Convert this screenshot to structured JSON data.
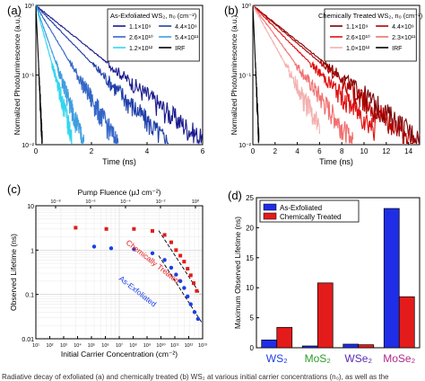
{
  "caption_fragment": "Radiative decay of exfoliated (a) and chemically treated (b) WS₂ at various initial carrier concentrations (n₀), as well as the",
  "chart_data": [
    {
      "panel": "(a)",
      "type": "line",
      "xlabel": "Time (ns)",
      "ylabel": "Normalized Photoluminescence (a.u.)",
      "xlim": [
        0,
        6
      ],
      "ylim": [
        0.01,
        1
      ],
      "yscale": "log",
      "xticks": [
        "0",
        "2",
        "4",
        "6"
      ],
      "yticks": [
        "10⁻²",
        "10⁻¹",
        "10⁰"
      ],
      "legend_title": "As-Exfoliated WS₂, n₀ (cm⁻²)",
      "legend_position": "top-right",
      "series": [
        {
          "name": "1.1×10⁹",
          "color": "#1a1a8c",
          "tau": 1.35,
          "tmax": 6.0
        },
        {
          "name": "4.4×10⁹",
          "color": "#1f3fa8",
          "tau": 1.05,
          "tmax": 4.8
        },
        {
          "name": "2.6×10¹⁰",
          "color": "#3466c8",
          "tau": 0.65,
          "tmax": 3.0
        },
        {
          "name": "5.4×10¹¹",
          "color": "#3e9ee0",
          "tau": 0.38,
          "tmax": 1.75
        },
        {
          "name": "1.2×10¹²",
          "color": "#33d6ef",
          "tau": 0.3,
          "tmax": 1.3
        },
        {
          "name": "IRF",
          "color": "#000000",
          "tau": 0.05,
          "tmax": 0.35
        }
      ]
    },
    {
      "panel": "(b)",
      "type": "line",
      "xlabel": "Time (ns)",
      "ylabel": "Normalized Photoluminescence (a.u.)",
      "xlim": [
        0,
        15
      ],
      "ylim": [
        0.01,
        1
      ],
      "yscale": "log",
      "xticks": [
        "0",
        "2",
        "4",
        "6",
        "8",
        "10",
        "12",
        "14"
      ],
      "yticks": [
        "10⁻²",
        "10⁻¹",
        "10⁰"
      ],
      "legend_title": "Chemically Treated WS₂, n₀ (cm⁻²)",
      "legend_position": "top-right",
      "series": [
        {
          "name": "1.1×10⁹",
          "color": "#7a0000",
          "tau": 3.4,
          "tmax": 15.0
        },
        {
          "name": "4.4×10⁹",
          "color": "#b00000",
          "tau": 3.2,
          "tmax": 15.0
        },
        {
          "name": "2.6×10¹⁰",
          "color": "#e01010",
          "tau": 2.7,
          "tmax": 11.0
        },
        {
          "name": "2.3×10¹¹",
          "color": "#f07070",
          "tau": 2.0,
          "tmax": 9.0
        },
        {
          "name": "1.0×10¹²",
          "color": "#f4b0b0",
          "tau": 1.5,
          "tmax": 6.0
        },
        {
          "name": "IRF",
          "color": "#000000",
          "tau": 0.12,
          "tmax": 0.9
        }
      ]
    },
    {
      "panel": "(c)",
      "type": "scatter",
      "xlabel": "Initial Carrier Concentration (cm⁻²)",
      "ylabel": "Observed Lifetime (ns)",
      "top_axis_label": "Pump Fluence (μJ cm⁻²)",
      "xscale": "log",
      "yscale": "log",
      "xlim": [
        10,
        1000
      ],
      "ylim": [
        0.01,
        10
      ],
      "xticks": [
        "10¹",
        "10²",
        "10³",
        "10⁴",
        "10⁵",
        "10⁶",
        "10⁷",
        "10⁸",
        "10⁹",
        "10¹⁰",
        "10¹¹",
        "10¹²",
        "10¹³"
      ],
      "top_xticks": [
        "10⁻⁸",
        "10⁻⁶",
        "10⁻⁴",
        "10⁻²",
        "10⁰"
      ],
      "yticks": [
        "0.01",
        "0.1",
        "1",
        "10"
      ],
      "grid": true,
      "annotations": [
        "Chemically Treated",
        "As-Exfoliated"
      ],
      "series": [
        {
          "name": "Chemically Treated",
          "color": "#e41a1a",
          "x": [
            30,
            70,
            150,
            250,
            350,
            420,
            480,
            540,
            600,
            660,
            720,
            780,
            850
          ],
          "y": [
            3.2,
            3.0,
            3.0,
            2.7,
            2.2,
            1.5,
            1.0,
            0.75,
            0.55,
            0.38,
            0.27,
            0.18,
            0.12
          ]
        },
        {
          "name": "As-Exfoliated",
          "color": "#1a3fe4",
          "x": [
            50,
            80,
            150,
            250,
            350,
            420,
            480,
            540,
            600,
            660,
            720,
            800,
            880
          ],
          "y": [
            1.2,
            1.1,
            1.05,
            0.85,
            0.6,
            0.4,
            0.28,
            0.2,
            0.14,
            0.09,
            0.06,
            0.04,
            0.028
          ]
        }
      ]
    },
    {
      "panel": "(d)",
      "type": "bar",
      "ylabel": "Maximum Observed Lifetime (ns)",
      "ylim": [
        0,
        25
      ],
      "yticks": [
        "0",
        "5",
        "10",
        "15",
        "20",
        "25"
      ],
      "categories": [
        "WS₂",
        "MoS₂",
        "WSe₂",
        "MoSe₂"
      ],
      "category_colors": [
        "#1f3fe0",
        "#2a9d2a",
        "#5a2ab0",
        "#b0288a"
      ],
      "legend_position": "top-left",
      "series": [
        {
          "name": "As-Exfoliated",
          "color": "#1f2ee6",
          "values": [
            1.3,
            0.3,
            0.6,
            23.2
          ]
        },
        {
          "name": "Chemically Treated",
          "color": "#e31b1b",
          "values": [
            3.4,
            10.8,
            0.5,
            8.5
          ]
        }
      ]
    }
  ]
}
